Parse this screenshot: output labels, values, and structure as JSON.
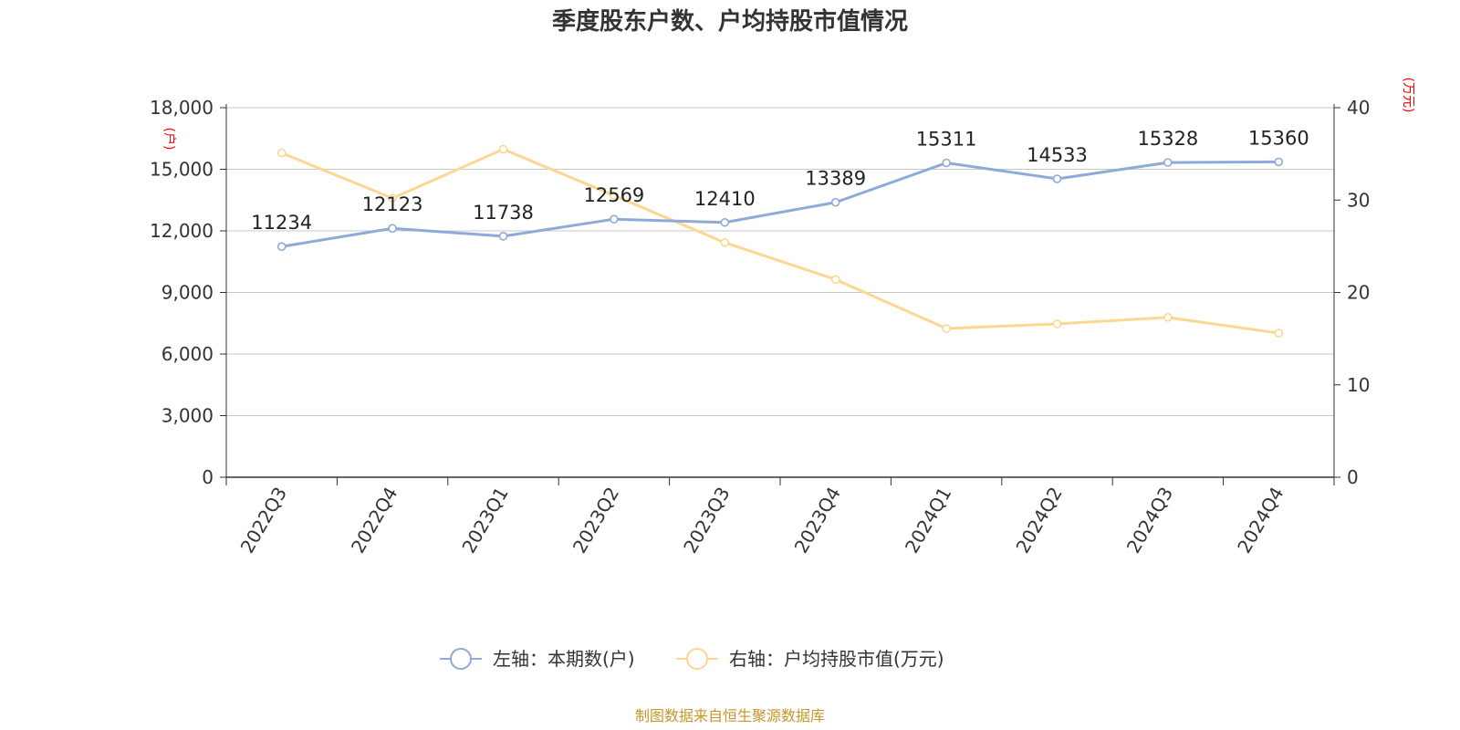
{
  "chart_data": {
    "type": "line",
    "title": "季度股东户数、户均持股市值情况",
    "categories": [
      "2022Q3",
      "2022Q4",
      "2023Q1",
      "2023Q2",
      "2023Q3",
      "2023Q4",
      "2024Q1",
      "2024Q2",
      "2024Q3",
      "2024Q4"
    ],
    "left_axis": {
      "unit": "(户)",
      "ylim": [
        0,
        18000
      ],
      "ticks": [
        0,
        3000,
        6000,
        9000,
        12000,
        15000,
        18000
      ],
      "tick_labels": [
        "0",
        "3,000",
        "6,000",
        "9,000",
        "12,000",
        "15,000",
        "18,000"
      ]
    },
    "right_axis": {
      "unit": "(万元)",
      "ylim": [
        0,
        40
      ],
      "ticks": [
        0,
        10,
        20,
        30,
        40
      ],
      "tick_labels": [
        "0",
        "10",
        "20",
        "30",
        "40"
      ]
    },
    "series": [
      {
        "name": "左轴：本期数(户)",
        "axis": "left",
        "color": "#8eaad8",
        "values": [
          11234,
          12123,
          11738,
          12569,
          12410,
          13389,
          15311,
          14533,
          15328,
          15360
        ],
        "data_labels": [
          "11234",
          "12123",
          "11738",
          "12569",
          "12410",
          "13389",
          "15311",
          "14533",
          "15328",
          "15360"
        ]
      },
      {
        "name": "右轴：户均持股市值(万元)",
        "axis": "right",
        "color": "#fcd792",
        "values": [
          35.1,
          30.2,
          35.5,
          30.5,
          25.4,
          21.4,
          16.1,
          16.6,
          17.3,
          15.6
        ]
      }
    ],
    "grid": true,
    "legend_position": "bottom-center",
    "source": "制图数据来自恒生聚源数据库"
  }
}
